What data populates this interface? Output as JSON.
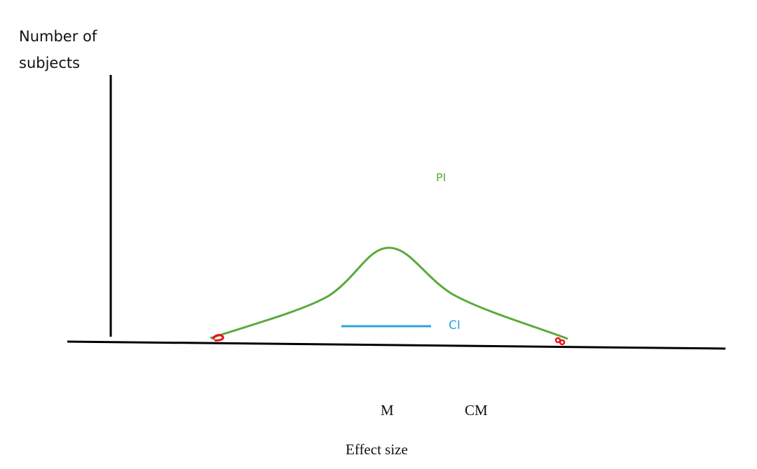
{
  "y_axis_label": [
    "Number of",
    "subjects"
  ],
  "x_axis_label": "Effect size",
  "annotations": {
    "pi": "PI",
    "ci": "CI",
    "m": "M",
    "cm": "CM"
  },
  "colors": {
    "curve": "#5aaa3a",
    "ci_line": "#2ba3dc",
    "endpoint_marks": "#e8131b",
    "axes": "#000000"
  }
}
